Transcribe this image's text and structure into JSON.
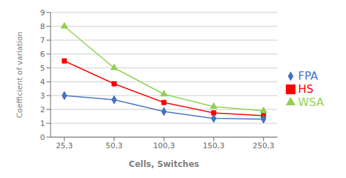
{
  "chart_data": {
    "type": "line",
    "xlabel": "Cells, Switches",
    "ylabel": "Coefficient of variation",
    "categories": [
      "25,3",
      "50,3",
      "100,3",
      "150,3",
      "250,3"
    ],
    "series": [
      {
        "name": "WSA",
        "color": "#92d050",
        "marker": "triangle",
        "values": [
          8.0,
          5.0,
          3.1,
          2.2,
          1.9
        ]
      },
      {
        "name": "HS",
        "color": "#ff0000",
        "marker": "square",
        "values": [
          5.5,
          3.85,
          2.5,
          1.75,
          1.55
        ]
      },
      {
        "name": "FPA",
        "color": "#4472c4",
        "marker": "diamond",
        "values": [
          3.0,
          2.7,
          1.85,
          1.35,
          1.3
        ]
      }
    ],
    "ylim": [
      0,
      9
    ],
    "yticks": [
      0,
      1,
      2,
      3,
      4,
      5,
      6,
      7,
      8,
      9
    ],
    "grid": true,
    "legend": "right"
  }
}
